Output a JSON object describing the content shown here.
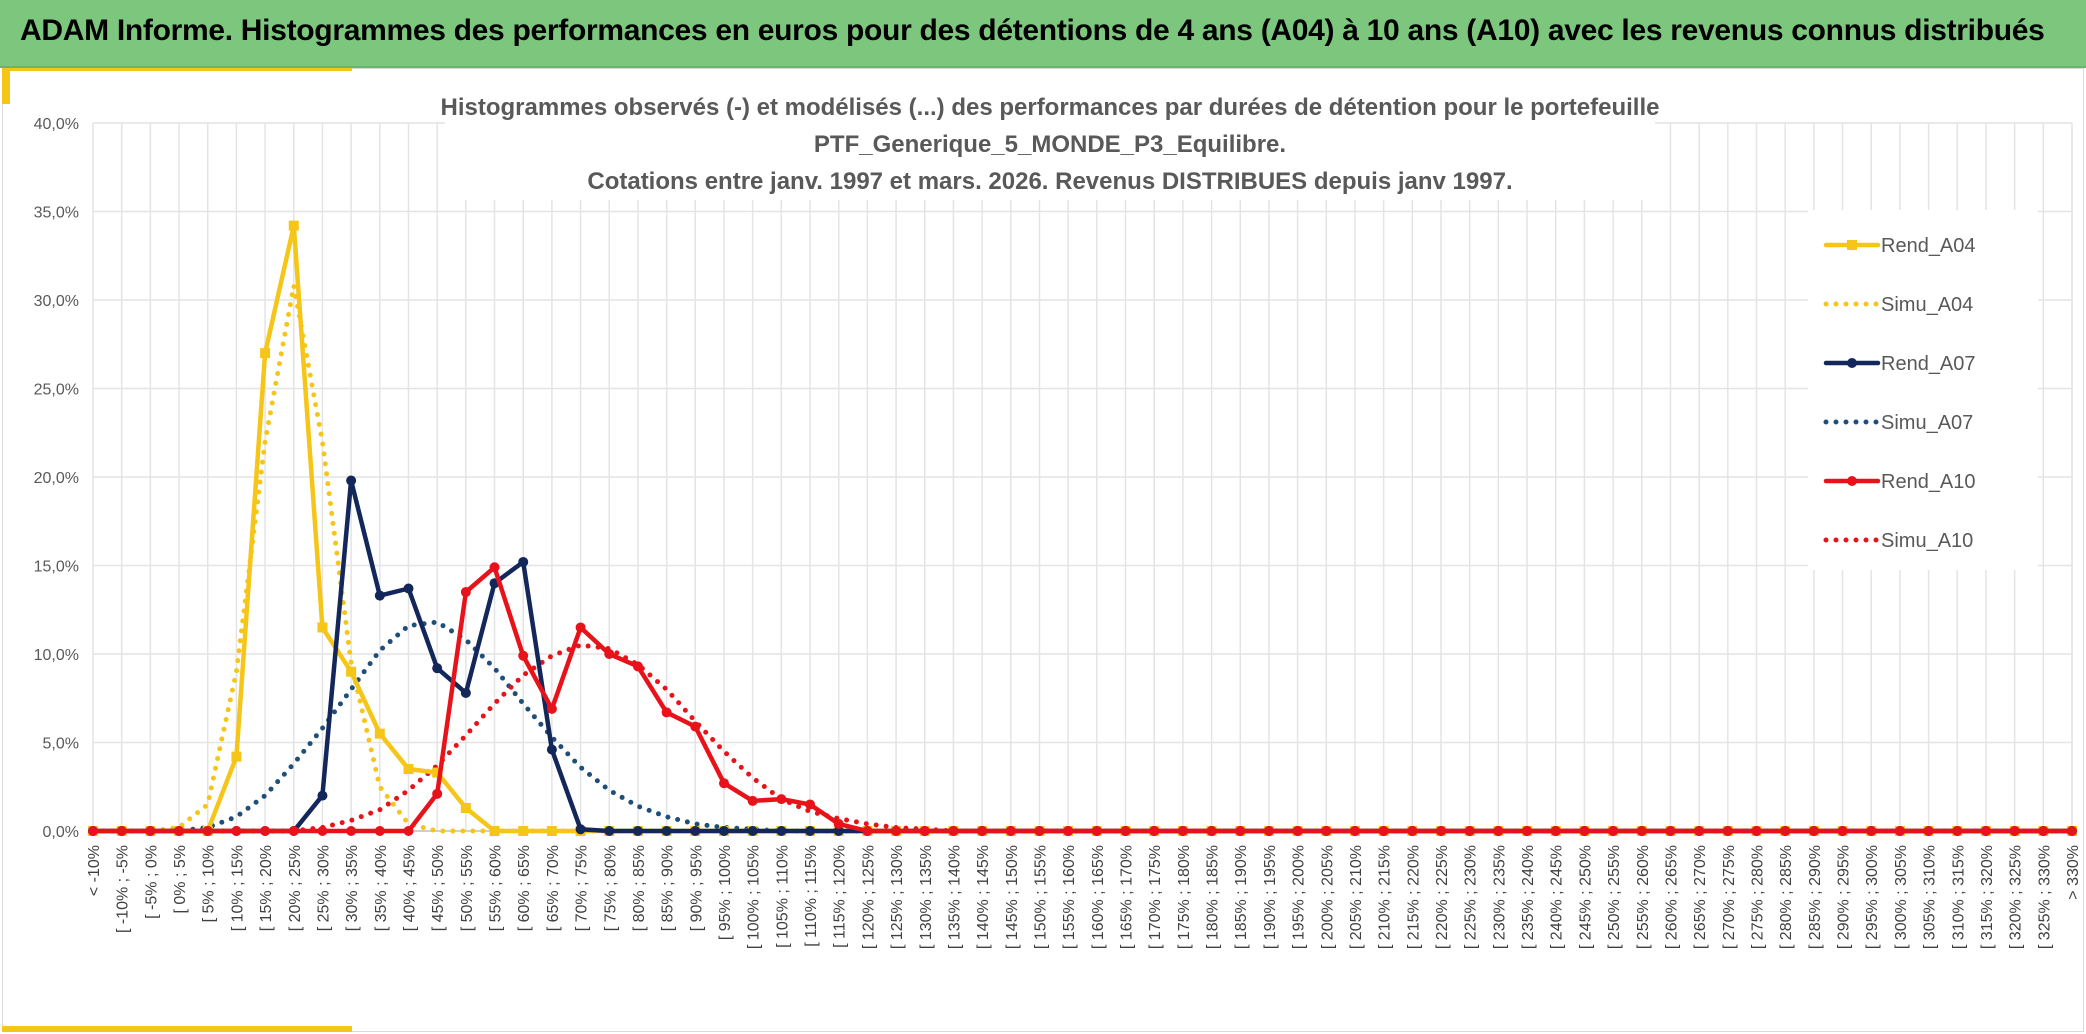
{
  "header": {
    "title": "ADAM Informe. Histogrammes des performances en euros pour des détentions de 4 ans (A04) à 10 ans (A10) avec les revenus connus distribués"
  },
  "colors": {
    "banner": "#7dc67d",
    "accent": "#f5c518",
    "A04": "#f5c518",
    "A07": "#13275b",
    "A10": "#e8131a"
  },
  "chart_data": {
    "type": "line",
    "title_lines": [
      "Histogrammes observés (-) et modélisés (...) des performances  par durées de détention pour le portefeuille",
      "PTF_Generique_5_MONDE_P3_Equilibre.",
      "Cotations entre janv. 1997 et mars. 2026. Revenus DISTRIBUES depuis janv 1997."
    ],
    "xlabel": "",
    "ylabel": "",
    "ylim": [
      0,
      40
    ],
    "y_ticks": [
      "0,0%",
      "5,0%",
      "10,0%",
      "15,0%",
      "20,0%",
      "25,0%",
      "30,0%",
      "35,0%",
      "40,0%"
    ],
    "grid": true,
    "legend_position": "right",
    "categories": [
      "< -10%",
      "[ -10% ; -5%",
      "[ -5% ; 0%",
      "[ 0% ; 5%",
      "[ 5% ; 10%",
      "[ 10% ; 15%",
      "[ 15% ; 20%",
      "[ 20% ; 25%",
      "[ 25% ; 30%",
      "[ 30% ; 35%",
      "[ 35% ; 40%",
      "[ 40% ; 45%",
      "[ 45% ; 50%",
      "[ 50% ; 55%",
      "[ 55% ; 60%",
      "[ 60% ; 65%",
      "[ 65% ; 70%",
      "[ 70% ; 75%",
      "[ 75% ; 80%",
      "[ 80% ; 85%",
      "[ 85% ; 90%",
      "[ 90% ; 95%",
      "[ 95% ; 100%",
      "[ 100% ; 105%",
      "[ 105% ; 110%",
      "[ 110% ; 115%",
      "[ 115% ; 120%",
      "[ 120% ; 125%",
      "[ 125% ; 130%",
      "[ 130% ; 135%",
      "[ 135% ; 140%",
      "[ 140% ; 145%",
      "[ 145% ; 150%",
      "[ 150% ; 155%",
      "[ 155% ; 160%",
      "[ 160% ; 165%",
      "[ 165% ; 170%",
      "[ 170% ; 175%",
      "[ 175% ; 180%",
      "[ 180% ; 185%",
      "[ 185% ; 190%",
      "[ 190% ; 195%",
      "[ 195% ; 200%",
      "[ 200% ; 205%",
      "[ 205% ; 210%",
      "[ 210% ; 215%",
      "[ 215% ; 220%",
      "[ 220% ; 225%",
      "[ 225% ; 230%",
      "[ 230% ; 235%",
      "[ 235% ; 240%",
      "[ 240% ; 245%",
      "[ 245% ; 250%",
      "[ 250% ; 255%",
      "[ 255% ; 260%",
      "[ 260% ; 265%",
      "[ 265% ; 270%",
      "[ 270% ; 275%",
      "[ 275% ; 280%",
      "[ 280% ; 285%",
      "[ 285% ; 290%",
      "[ 290% ; 295%",
      "[ 295% ; 300%",
      "[ 300% ; 305%",
      "[ 305% ; 310%",
      "[ 310% ; 315%",
      "[ 315% ; 320%",
      "[ 320% ; 325%",
      "[ 325% ; 330%",
      "> 330%"
    ],
    "series": [
      {
        "name": "Rend_A04",
        "style": "solid",
        "marker": "square",
        "color": "#f5c518",
        "values": [
          0,
          0,
          0,
          0,
          0,
          4.2,
          27.0,
          34.2,
          11.5,
          9.0,
          5.5,
          3.5,
          3.3,
          1.3,
          0,
          0,
          0,
          0,
          0,
          0,
          0,
          0,
          0,
          0,
          0,
          0,
          0,
          0,
          0,
          0,
          0,
          0,
          0,
          0,
          0,
          0,
          0,
          0,
          0,
          0,
          0,
          0,
          0,
          0,
          0,
          0,
          0,
          0,
          0,
          0,
          0,
          0,
          0,
          0,
          0,
          0,
          0,
          0,
          0,
          0,
          0,
          0,
          0,
          0,
          0,
          0,
          0,
          0,
          0,
          0
        ]
      },
      {
        "name": "Simu_A04",
        "style": "dotted",
        "marker": "none",
        "color": "#f5c518",
        "values": [
          0,
          0,
          0,
          0.2,
          1.5,
          9.0,
          22.0,
          30.8,
          22.0,
          9.5,
          2.5,
          0.4,
          0,
          0,
          0,
          0,
          0,
          0,
          0,
          0,
          0,
          0,
          0,
          0,
          0,
          0,
          0,
          0,
          0,
          0,
          0,
          0,
          0,
          0,
          0,
          0,
          0,
          0,
          0,
          0,
          0,
          0,
          0,
          0,
          0,
          0,
          0,
          0,
          0,
          0,
          0,
          0,
          0,
          0,
          0,
          0,
          0,
          0,
          0,
          0,
          0,
          0,
          0,
          0,
          0,
          0,
          0,
          0,
          0,
          0
        ]
      },
      {
        "name": "Rend_A07",
        "style": "solid",
        "marker": "circle",
        "color": "#13275b",
        "values": [
          0,
          0,
          0,
          0,
          0,
          0,
          0,
          0,
          2.0,
          19.8,
          13.3,
          13.7,
          9.2,
          7.8,
          14.0,
          15.2,
          4.6,
          0.1,
          0,
          0,
          0,
          0,
          0,
          0,
          0,
          0,
          0,
          0,
          0,
          0,
          0,
          0,
          0,
          0,
          0,
          0,
          0,
          0,
          0,
          0,
          0,
          0,
          0,
          0,
          0,
          0,
          0,
          0,
          0,
          0,
          0,
          0,
          0,
          0,
          0,
          0,
          0,
          0,
          0,
          0,
          0,
          0,
          0,
          0,
          0,
          0,
          0,
          0,
          0,
          0
        ]
      },
      {
        "name": "Simu_A07",
        "style": "dotted",
        "marker": "none",
        "color": "#1f4e79",
        "values": [
          0,
          0,
          0,
          0,
          0.2,
          0.8,
          2.0,
          3.8,
          5.8,
          8.0,
          10.2,
          11.6,
          11.8,
          10.8,
          9.2,
          7.2,
          5.3,
          3.6,
          2.3,
          1.4,
          0.8,
          0.4,
          0.2,
          0.1,
          0,
          0,
          0,
          0,
          0,
          0,
          0,
          0,
          0,
          0,
          0,
          0,
          0,
          0,
          0,
          0,
          0,
          0,
          0,
          0,
          0,
          0,
          0,
          0,
          0,
          0,
          0,
          0,
          0,
          0,
          0,
          0,
          0,
          0,
          0,
          0,
          0,
          0,
          0,
          0,
          0,
          0,
          0,
          0,
          0,
          0
        ]
      },
      {
        "name": "Rend_A10",
        "style": "solid",
        "marker": "circle",
        "color": "#e8131a",
        "values": [
          0,
          0,
          0,
          0,
          0,
          0,
          0,
          0,
          0,
          0,
          0,
          0,
          2.1,
          13.5,
          14.9,
          9.9,
          6.9,
          11.5,
          10.0,
          9.3,
          6.7,
          5.9,
          2.7,
          1.7,
          1.8,
          1.5,
          0.4,
          0,
          0,
          0,
          0,
          0,
          0,
          0,
          0,
          0,
          0,
          0,
          0,
          0,
          0,
          0,
          0,
          0,
          0,
          0,
          0,
          0,
          0,
          0,
          0,
          0,
          0,
          0,
          0,
          0,
          0,
          0,
          0,
          0,
          0,
          0,
          0,
          0,
          0,
          0,
          0,
          0,
          0,
          0
        ]
      },
      {
        "name": "Simu_A10",
        "style": "dotted",
        "marker": "none",
        "color": "#e8131a",
        "values": [
          0,
          0,
          0,
          0,
          0,
          0,
          0,
          0,
          0.2,
          0.6,
          1.2,
          2.3,
          3.7,
          5.4,
          7.2,
          8.8,
          9.9,
          10.5,
          10.3,
          9.4,
          8.0,
          6.2,
          4.5,
          3.0,
          1.8,
          1.1,
          0.7,
          0.4,
          0.2,
          0.1,
          0,
          0,
          0,
          0,
          0,
          0,
          0,
          0,
          0,
          0,
          0,
          0,
          0,
          0,
          0,
          0,
          0,
          0,
          0,
          0,
          0,
          0,
          0,
          0,
          0,
          0,
          0,
          0,
          0,
          0,
          0,
          0,
          0,
          0,
          0,
          0,
          0,
          0,
          0,
          0
        ]
      }
    ]
  }
}
